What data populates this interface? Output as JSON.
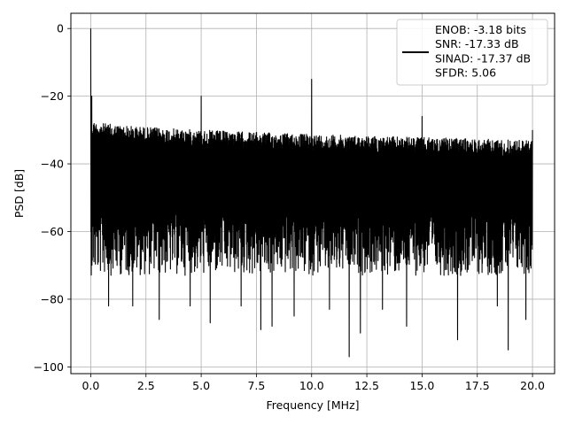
{
  "chart_data": {
    "type": "line",
    "xlabel": "Frequency [MHz]",
    "ylabel": "PSD [dB]",
    "xlim": [
      -0.9,
      21.0
    ],
    "ylim": [
      -102,
      4.5
    ],
    "xticks": [
      0.0,
      2.5,
      5.0,
      7.5,
      10.0,
      12.5,
      15.0,
      17.5,
      20.0
    ],
    "xtick_labels": [
      "0.0",
      "2.5",
      "5.0",
      "7.5",
      "10.0",
      "12.5",
      "15.0",
      "17.5",
      "20.0"
    ],
    "yticks": [
      0,
      -20,
      -40,
      -60,
      -80,
      -100
    ],
    "ytick_labels": [
      "0",
      "−20",
      "−40",
      "−60",
      "−80",
      "−100"
    ],
    "grid": true,
    "legend_position": "top-right",
    "legend_lines": [
      "ENOB: -3.18 bits",
      "SNR: -17.33 dB",
      "SINAD: -17.37 dB",
      "SFDR: 5.06"
    ],
    "series": [
      {
        "color": "#000000",
        "x_range": [
          0.0,
          20.0
        ],
        "noise_upper_start": -27,
        "noise_upper_end": -33,
        "noise_lower_typical": -70,
        "noise_lower_min": -97,
        "peaks": [
          {
            "x": 0.0,
            "y": 0
          },
          {
            "x": 0.05,
            "y": -20
          },
          {
            "x": 5.0,
            "y": -20
          },
          {
            "x": 10.0,
            "y": -15
          },
          {
            "x": 15.0,
            "y": -26
          },
          {
            "x": 20.0,
            "y": -30
          }
        ],
        "deep_dips": [
          {
            "x": 0.8,
            "y": -82
          },
          {
            "x": 1.9,
            "y": -82
          },
          {
            "x": 3.1,
            "y": -86
          },
          {
            "x": 4.5,
            "y": -82
          },
          {
            "x": 5.4,
            "y": -87
          },
          {
            "x": 6.8,
            "y": -82
          },
          {
            "x": 7.7,
            "y": -89
          },
          {
            "x": 8.2,
            "y": -88
          },
          {
            "x": 9.2,
            "y": -85
          },
          {
            "x": 10.8,
            "y": -83
          },
          {
            "x": 11.7,
            "y": -97
          },
          {
            "x": 12.2,
            "y": -90
          },
          {
            "x": 13.2,
            "y": -83
          },
          {
            "x": 14.3,
            "y": -88
          },
          {
            "x": 16.6,
            "y": -92
          },
          {
            "x": 18.4,
            "y": -82
          },
          {
            "x": 18.9,
            "y": -95
          },
          {
            "x": 19.7,
            "y": -86
          }
        ]
      }
    ]
  }
}
